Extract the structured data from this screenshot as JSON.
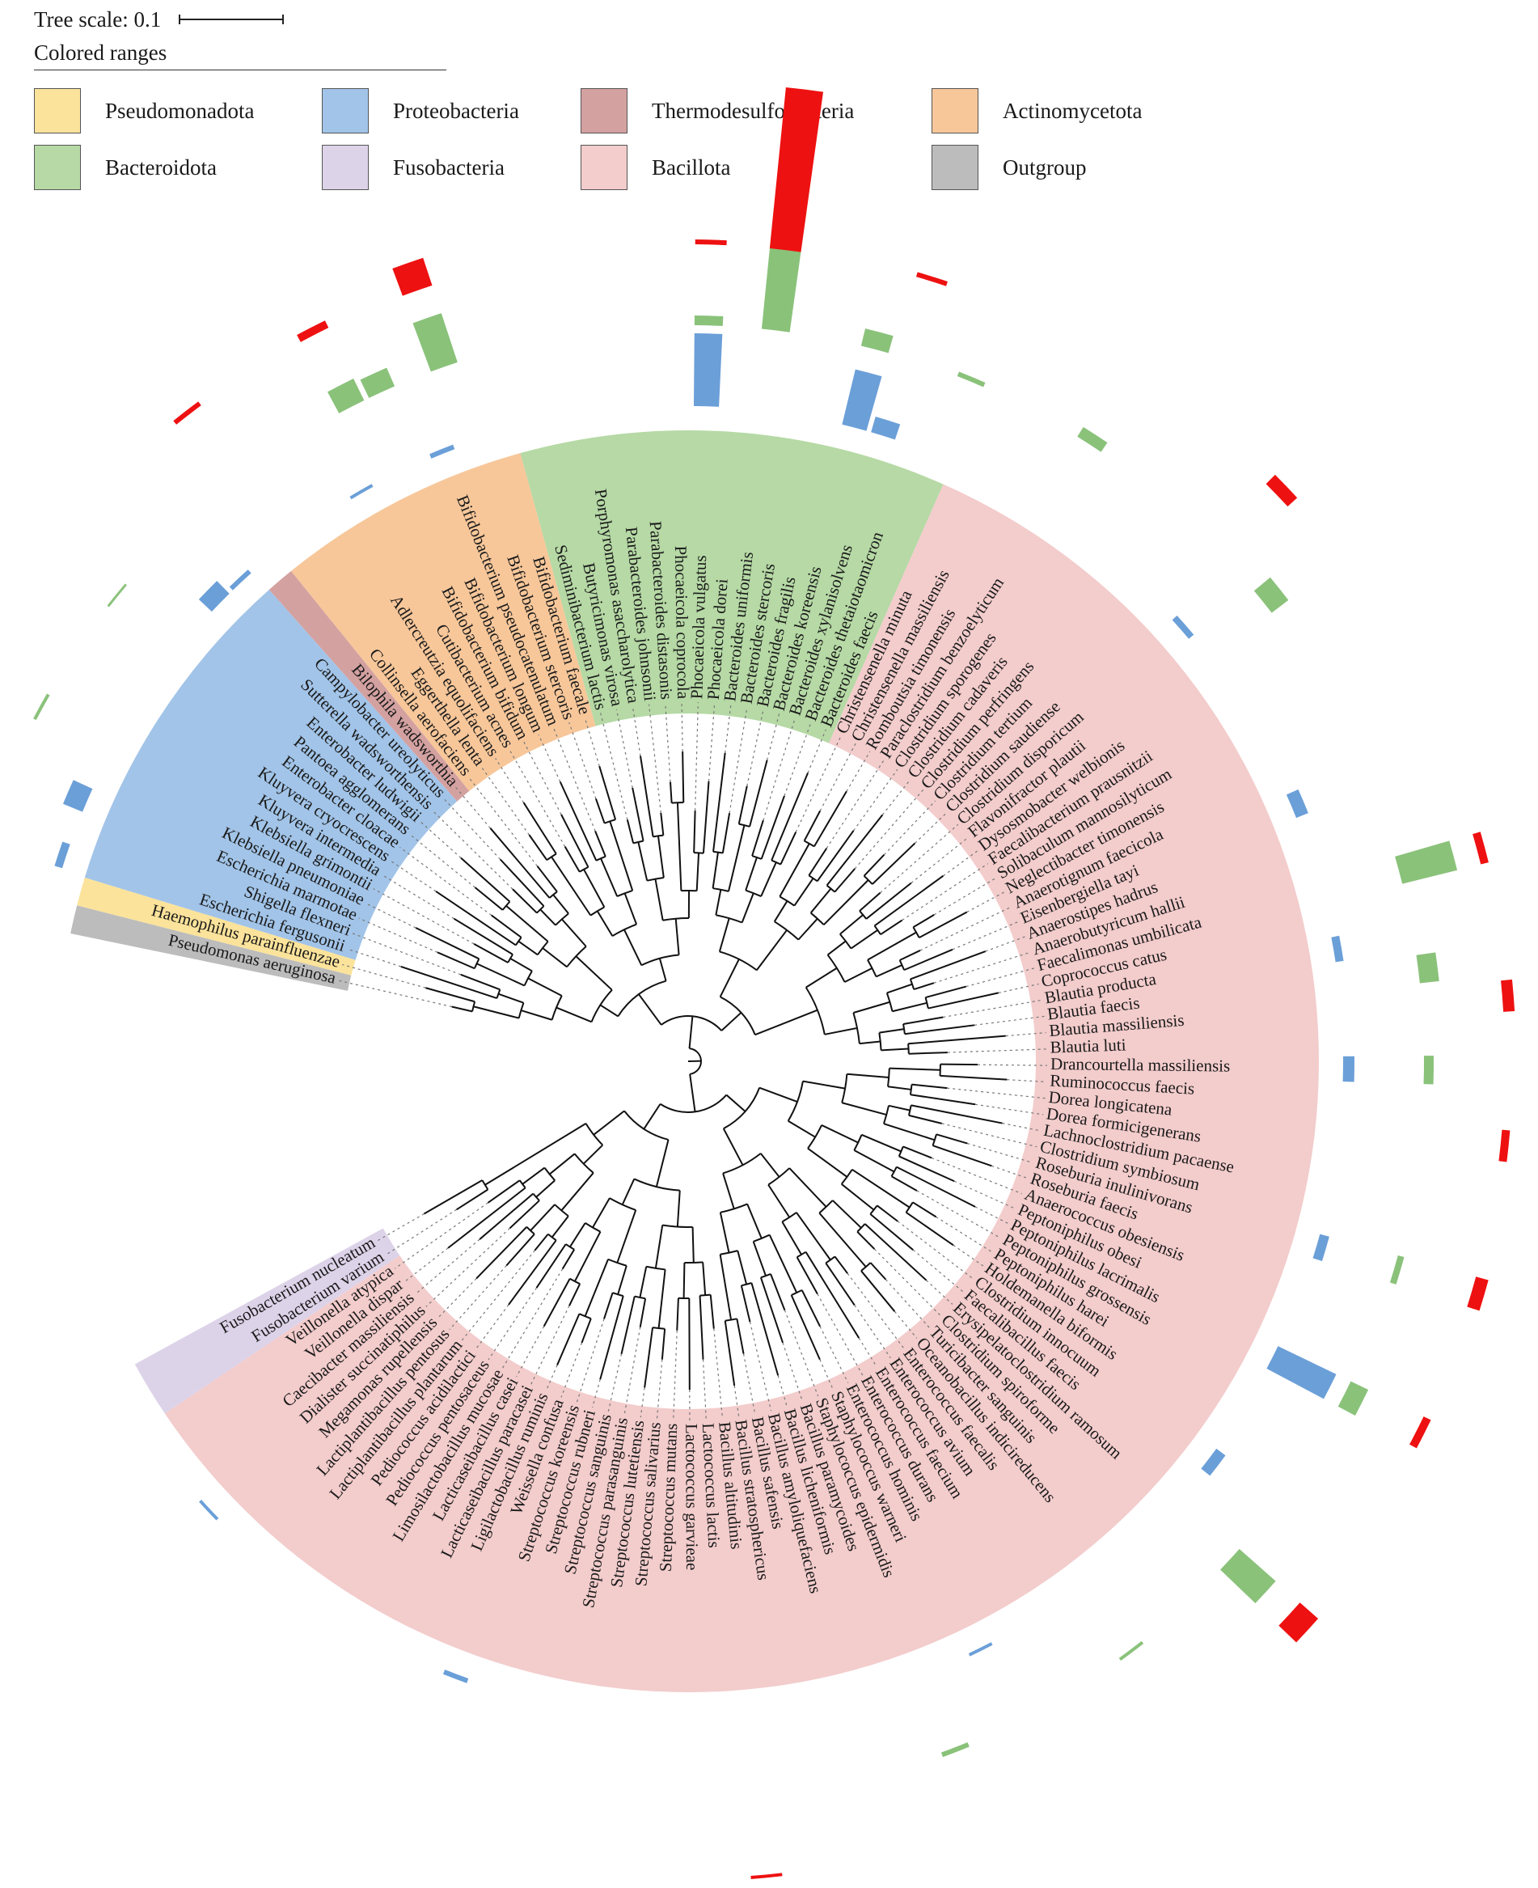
{
  "tree_scale": {
    "label": "Tree scale: 0.1"
  },
  "legend": {
    "title": "Colored ranges",
    "items": [
      {
        "label": "Pseudomonadota",
        "color": "#fbe39b"
      },
      {
        "label": "Proteobacteria",
        "color": "#a2c4e8"
      },
      {
        "label": "Thermodesulfobacteria",
        "color": "#d4a1a1"
      },
      {
        "label": "Actinomycetota",
        "color": "#f7c79a"
      },
      {
        "label": "Bacteroidota",
        "color": "#b6d9a5"
      },
      {
        "label": "Fusobacteria",
        "color": "#ddd3e9"
      },
      {
        "label": "Bacillota",
        "color": "#f3cccc"
      },
      {
        "label": "Outgroup",
        "color": "#bcbcbc"
      }
    ]
  },
  "ring_colors": {
    "blue": "#6b9fd8",
    "green": "#8ac27a",
    "red": "#ee1111"
  },
  "taxa": [
    "Pseudomonas aeruginosa",
    "Haemophilus parainfluenzae",
    "Escherichia fergusonii",
    "Shigella flexneri",
    "Escherichia marmotae",
    "Klebsiella pneumoniae",
    "Klebsiella grimontii",
    "Kluyvera intermedia",
    "Kluyvera cryocrescens",
    "Enterobacter cloacae",
    "Pantoea agglomerans",
    "Enterobacter ludwigii",
    "Sutterella wadsworthensis",
    "Campylobacter ureolyticus",
    "Bilophila wadsworthia",
    "Collinsella aerofaciens",
    "Eggerthella lenta",
    "Adlercreutzia equolifaciens",
    "Cutibacterium acnes",
    "Bifidobacterium bifidum",
    "Bifidobacterium longum",
    "Bifidobacterium pseudocatenulatum",
    "Bifidobacterium stercoris",
    "Bifidobacterium faecale",
    "Sediminibacterium lactis",
    "Butyricimonas virosa",
    "Porphyromonas asaccharolytica",
    "Parabacteroides johnsonii",
    "Parabacteroides distasonis",
    "Phocaeicola coprocola",
    "Phocaeicola vulgatus",
    "Phocaeicola dorei",
    "Bacteroides uniformis",
    "Bacteroides stercoris",
    "Bacteroides fragilis",
    "Bacteroides koreensis",
    "Bacteroides xylanisolvens",
    "Bacteroides thetaiotaomicron",
    "Bacteroides faecis",
    "Christensenella minuta",
    "Christensenella massiliensis",
    "Romboutsia timonensis",
    "Paraclostridium benzoelyticum",
    "Clostridium sporogenes",
    "Clostridium cadaveris",
    "Clostridium perfringens",
    "Clostridium tertium",
    "Clostridium saudiense",
    "Clostridium disporicum",
    "Flavonifractor plautii",
    "Dysosmobacter welbionis",
    "Faecalibacterium prausnitzii",
    "Solibaculum mannosilyticum",
    "Neglectibacter timonensis",
    "Anaerotignum faecicola",
    "Eisenbergiella tayi",
    "Anaerostipes hadrus",
    "Anaerobutyricum hallii",
    "Faecalimonas umbilicata",
    "Coprococcus catus",
    "Blautia producta",
    "Blautia faecis",
    "Blautia massiliensis",
    "Blautia luti",
    "Drancourtella massiliensis",
    "Ruminococcus faecis",
    "Dorea longicatena",
    "Dorea formicigenerans",
    "Lachnoclostridium pacaense",
    "Clostridium symbiosum",
    "Roseburia inulinivorans",
    "Roseburia faecis",
    "Anaerococcus obesiensis",
    "Peptoniphilus obesi",
    "Peptoniphilus lacrimalis",
    "Peptoniphilus grossensis",
    "Peptoniphilus harei",
    "Holdemanella biformis",
    "Clostridium innocuum",
    "Faecalibacillus faecis",
    "Erysipelatoclostridium ramosum",
    "Clostridium spiroforme",
    "Turicibacter sanguinis",
    "Oceanobacillus indicireducens",
    "Enterococcus faecalis",
    "Enterococcus avium",
    "Enterococcus faecium",
    "Enterococcus durans",
    "Enterococcus hominis",
    "Staphylococcus warneri",
    "Staphylococcus epidermidis",
    "Bacillus paramycoides",
    "Bacillus licheniformis",
    "Bacillus amyloliquefaciens",
    "Bacillus safensis",
    "Bacillus stratosphericus",
    "Bacillus altitudinis",
    "Lactococcus lactis",
    "Lactococcus garvieae",
    "Streptococcus mutans",
    "Streptococcus salivarius",
    "Streptococcus lutetiensis",
    "Streptococcus parasanguinis",
    "Streptococcus sanguinis",
    "Streptococcus rubneri",
    "Streptococcus koreensis",
    "Weissella confusa",
    "Ligilactobacillus ruminis",
    "Lacticaseibacillus paracasei",
    "Lacticaseibacillus casei",
    "Limosilactobacillus mucosae",
    "Pediococcus pentosaceus",
    "Pediococcus acidilactici",
    "Lactiplantibacillus plantarum",
    "Lactiplantibacillus pentosus",
    "Megamonas rupellensis",
    "Dialister succinatiphilus",
    "Caecibacter massiliensis",
    "Veillonella dispar",
    "Veillonella atypica",
    "Fusobacterium varium",
    "Fusobacterium nucleatum"
  ],
  "groups": [
    {
      "name": "Outgroup",
      "first": 0,
      "last": 0
    },
    {
      "name": "Pseudomonadota",
      "first": 1,
      "last": 1
    },
    {
      "name": "Proteobacteria",
      "first": 2,
      "last": 13
    },
    {
      "name": "Thermodesulfobacteria",
      "first": 14,
      "last": 14
    },
    {
      "name": "Actinomycetota",
      "first": 15,
      "last": 23
    },
    {
      "name": "Bacteroidota",
      "first": 24,
      "last": 38
    },
    {
      "name": "Bacillota",
      "first": 39,
      "last": 119
    },
    {
      "name": "Fusobacteria",
      "first": 120,
      "last": 121
    }
  ]
}
